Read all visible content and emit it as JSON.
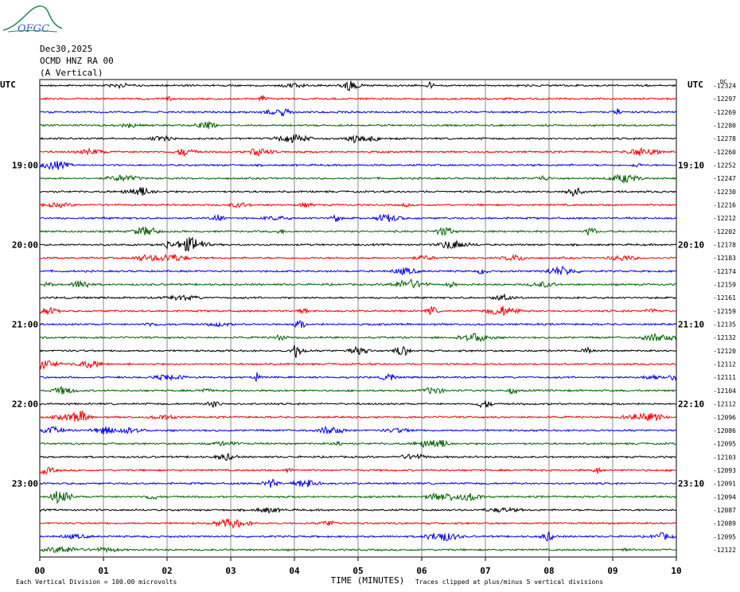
{
  "header": {
    "date": "Dec30,2025",
    "station": "OCMD HNZ RA 00",
    "component": "(A Vertical)",
    "logo_text": "OFGC"
  },
  "chart_data": {
    "type": "line",
    "title": "",
    "left_axis_label": "UTC",
    "right_axis_label": "UTC",
    "dc_label": "DC",
    "xlabel": "TIME (MINUTES)",
    "xlim": [
      0,
      10
    ],
    "x_ticks": [
      "00",
      "01",
      "02",
      "03",
      "04",
      "05",
      "06",
      "07",
      "08",
      "09",
      "10"
    ],
    "left_hour_labels": [
      {
        "row": 6,
        "text": "19:00"
      },
      {
        "row": 12,
        "text": "20:00"
      },
      {
        "row": 18,
        "text": "21:00"
      },
      {
        "row": 24,
        "text": "22:00"
      },
      {
        "row": 30,
        "text": "23:00"
      }
    ],
    "right_hour_labels": [
      {
        "row": 6,
        "text": "19:10"
      },
      {
        "row": 12,
        "text": "20:10"
      },
      {
        "row": 18,
        "text": "21:10"
      },
      {
        "row": 24,
        "text": "22:10"
      },
      {
        "row": 30,
        "text": "23:10"
      }
    ],
    "trace_colors": [
      "#000000",
      "#ff0000",
      "#0000ff",
      "#006400"
    ],
    "dc_offsets": [
      "-12324",
      "-12297",
      "-12269",
      "-12280",
      "-12278",
      "-12260",
      "-12252",
      "-12247",
      "-12230",
      "-12216",
      "-12212",
      "-12202",
      "-12178",
      "-12183",
      "-12174",
      "-12159",
      "-12161",
      "-12159",
      "-12135",
      "-12132",
      "-12120",
      "-12112",
      "-12111",
      "-12104",
      "-12112",
      "-12096",
      "-12086",
      "-12095",
      "-12103",
      "-12093",
      "-12091",
      "-12094",
      "-12087",
      "-12089",
      "-12095",
      "-12122"
    ],
    "footer_left": "Each Vertical Division =  100.00 microvolts",
    "footer_right": "Traces clipped at plus/minus 5 vertical divisions",
    "grid": true
  }
}
